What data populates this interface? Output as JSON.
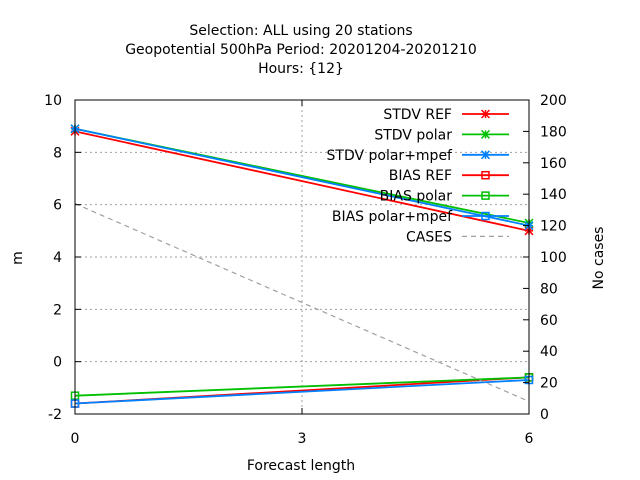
{
  "chart_data": {
    "type": "line",
    "title_lines": [
      "Selection: ALL using    20 stations",
      "Geopotential 500hPa   Period: 20201204-20201210",
      "Hours: {12}"
    ],
    "xlabel": "Forecast length",
    "ylabel": "m",
    "y2label": "No cases",
    "xlim": [
      0,
      6
    ],
    "ylim": [
      -2,
      10
    ],
    "y2lim": [
      0,
      200
    ],
    "xticks": [
      0,
      3,
      6
    ],
    "yticks": [
      -2,
      0,
      2,
      4,
      6,
      8,
      10
    ],
    "y2ticks": [
      0,
      20,
      40,
      60,
      80,
      100,
      120,
      140,
      160,
      180,
      200
    ],
    "grid": true,
    "legend_position": "top-right",
    "x": [
      0,
      6
    ],
    "series": [
      {
        "name": "STDV REF",
        "values": [
          8.8,
          5.0
        ],
        "color": "#ff0000",
        "marker": "x-star",
        "axis": "y1",
        "dash": "solid"
      },
      {
        "name": "STDV polar",
        "values": [
          8.9,
          5.3
        ],
        "color": "#00c000",
        "marker": "x-star",
        "axis": "y1",
        "dash": "solid"
      },
      {
        "name": "STDV polar+mpef",
        "values": [
          8.9,
          5.2
        ],
        "color": "#0080ff",
        "marker": "x-star",
        "axis": "y1",
        "dash": "solid"
      },
      {
        "name": "BIAS REF",
        "values": [
          -1.6,
          -0.6
        ],
        "color": "#ff0000",
        "marker": "square",
        "axis": "y1",
        "dash": "solid"
      },
      {
        "name": "BIAS polar",
        "values": [
          -1.3,
          -0.6
        ],
        "color": "#00c000",
        "marker": "square",
        "axis": "y1",
        "dash": "solid"
      },
      {
        "name": "BIAS polar+mpef",
        "values": [
          -1.6,
          -0.7
        ],
        "color": "#0080ff",
        "marker": "square",
        "axis": "y1",
        "dash": "solid"
      },
      {
        "name": "CASES",
        "values": [
          134,
          8
        ],
        "color": "#a0a0a0",
        "marker": "none",
        "axis": "y2",
        "dash": "dashed"
      }
    ]
  }
}
